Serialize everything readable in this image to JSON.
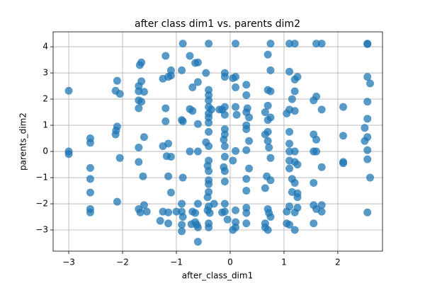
{
  "chart_data": {
    "type": "scatter",
    "title": "after class dim1 vs. parents dim2",
    "x_label": "after_class_dim1",
    "y_label": "parents_dim2",
    "color": "#1f77b4",
    "grid": true,
    "xlim": [
      -3.29,
      2.83
    ],
    "ylim": [
      -3.81,
      4.57
    ],
    "xticks": [
      {
        "value": -3,
        "label": "−3"
      },
      {
        "value": -2,
        "label": "−2"
      },
      {
        "value": -1,
        "label": "−1"
      },
      0,
      1,
      2
    ],
    "yticks": [
      {
        "value": -3,
        "label": "−3"
      },
      {
        "value": -2,
        "label": "−2"
      },
      {
        "value": -1,
        "label": "−1"
      },
      0,
      1,
      2,
      3,
      4
    ],
    "x": [
      -3,
      -3,
      -3,
      -2.6,
      -2.6,
      -2.6,
      -2.6,
      -2.6,
      -2.6,
      -2.6,
      -2.1,
      -2.13,
      -2.05,
      -2.1,
      -2.12,
      -2.13,
      -2.05,
      -2.1,
      -1.65,
      -1.68,
      -1.7,
      -1.65,
      -1.7,
      -1.6,
      -1.7,
      -1.65,
      -1.7,
      -1.6,
      -1.7,
      -1.7,
      -1.62,
      -1.7,
      -1.67,
      -1.6,
      -1.55,
      -1.2,
      -1.1,
      -1.15,
      -1.1,
      -1.25,
      -1.2,
      -1.2,
      -1.15,
      -1.25,
      -1.18,
      -1.1,
      -1.15,
      -1.1,
      -1.25,
      -1.15,
      -1.15,
      -1.3,
      -1.0,
      -0.88,
      -0.9,
      -0.75,
      -0.65,
      -0.6,
      -0.6,
      -0.7,
      -0.7,
      -0.75,
      -0.9,
      -0.88,
      -0.75,
      -0.6,
      -0.6,
      -0.88,
      -0.9,
      -0.9,
      -0.88,
      -0.7,
      -0.65,
      -0.6,
      -0.65,
      -0.62,
      -0.72,
      -0.9,
      -0.9,
      -0.6,
      -0.6,
      -0.4,
      -0.45,
      -0.4,
      -0.4,
      -0.4,
      -0.4,
      -0.4,
      -0.35,
      -0.4,
      -0.4,
      -0.4,
      -0.45,
      -0.4,
      -0.4,
      -0.42,
      -0.4,
      -0.4,
      -0.4,
      -0.4,
      -0.42,
      -0.4,
      -0.42,
      -0.38,
      -0.4,
      -0.4,
      -0.3,
      -0.1,
      -0.15,
      -0.2,
      -0.1,
      -0.1,
      -0.12,
      -0.1,
      -0.1,
      -0.1,
      -0.12,
      -0.1,
      -0.1,
      -0.1,
      -0.15,
      -0.1,
      -0.05,
      -0.1,
      -0.1,
      0.1,
      0.1,
      0.05,
      0.1,
      0.1,
      0.12,
      0.1,
      0.1,
      0.1,
      0.05,
      0.1,
      0.05,
      0.3,
      0.3,
      0.32,
      0.3,
      0.35,
      0.3,
      0.3,
      0.35,
      0.3,
      0.35,
      0.3,
      0.3,
      0.3,
      0.3,
      0.3,
      0.75,
      0.7,
      0.75,
      0.7,
      0.75,
      0.7,
      0.65,
      0.7,
      0.75,
      0.7,
      0.65,
      0.7,
      0.72,
      0.75,
      0.68,
      0.75,
      0.65,
      0.7,
      0.72,
      0.65,
      0.65,
      0.7,
      0.75,
      1.1,
      1.2,
      1.1,
      1.25,
      1.2,
      1.2,
      1.15,
      1.1,
      1.2,
      1.05,
      1.1,
      1.1,
      1.1,
      1.2,
      1.1,
      1.1,
      1.2,
      1.25,
      1.15,
      1.2,
      1.15,
      1.25,
      1.1,
      1.05,
      1.2,
      1.25,
      1.05,
      1.1,
      1.2,
      1.25,
      1.6,
      1.7,
      1.6,
      1.55,
      1.7,
      1.55,
      1.6,
      1.55,
      1.6,
      1.7,
      1.55,
      1.55,
      1.6,
      1.7,
      1.55,
      1.7,
      2.1,
      2.1,
      2.1,
      2.1,
      2.55,
      2.55,
      2.55,
      2.6,
      2.55,
      2.55,
      2.5,
      2.55,
      2.5,
      2.55,
      2.55,
      2.6,
      2.55
    ],
    "values": [
      2.32,
      0,
      -0.1,
      0.5,
      0.33,
      -0.63,
      -1.05,
      -1.57,
      -2.2,
      -2.33,
      2.7,
      2.32,
      2.2,
      0.95,
      0.8,
      0.65,
      -0.25,
      -1.92,
      3.4,
      3.3,
      2.5,
      2.68,
      2.3,
      2.28,
      1.95,
      1.9,
      1.65,
      0.55,
      0.15,
      -0.4,
      -0.95,
      -2.2,
      -2.33,
      -2.05,
      -2.3,
      3.65,
      3.1,
      2.85,
      2.9,
      2.78,
      1.65,
      1.15,
      0.3,
      0.2,
      -0.18,
      -0.2,
      -0.95,
      -1.57,
      -2.3,
      -2.33,
      -2.75,
      -2.65,
      -2.3,
      4.12,
      3.1,
      3.65,
      3.38,
      3.4,
      2.65,
      2.45,
      1.55,
      1.62,
      1.2,
      1.15,
      0,
      0,
      1.05,
      -1.0,
      -2.0,
      -2.3,
      -2.5,
      -2.3,
      -2.35,
      -2.0,
      -2.7,
      -2.8,
      -2.78,
      -2.8,
      -3.05,
      -3.45,
      -2.9,
      4.12,
      3.0,
      2.35,
      2.15,
      1.95,
      1.7,
      1.45,
      1.6,
      1.3,
      1.1,
      0.75,
      0.35,
      0.2,
      -0.35,
      -0.55,
      -0.75,
      -1.1,
      -1.25,
      -1.55,
      -1.75,
      -2.1,
      -2.25,
      -2.35,
      -2.75,
      -2.9,
      -2.0,
      1.7,
      1.6,
      1.6,
      1.4,
      0.85,
      0.45,
      0.65,
      0.2,
      -0.2,
      -0.6,
      -0.75,
      -1.15,
      -2.3,
      -2.33,
      -2.0,
      -2.6,
      3.0,
      2.85,
      4.12,
      2.85,
      2.8,
      2.45,
      1.7,
      1.4,
      0.02,
      -2.25,
      -2.9,
      -3.0,
      -2.7,
      -0.35,
      2.55,
      2.15,
      1.65,
      1.5,
      1.3,
      1.0,
      0.85,
      0.4,
      0.05,
      -0.65,
      -1.05,
      -1.5,
      -2.15,
      -2.35,
      -2.75,
      4.12,
      3.7,
      3.1,
      2.35,
      2.3,
      1.75,
      1.5,
      1.2,
      1.3,
      0.75,
      0.65,
      0.4,
      0.15,
      -0.25,
      -0.95,
      -1.1,
      -1.4,
      -2.2,
      -2.35,
      -2.75,
      -2.9,
      -3.0,
      -2.5,
      4.12,
      4.12,
      3.05,
      2.85,
      2.75,
      2.3,
      2.0,
      1.6,
      1.55,
      1.45,
      0.75,
      0.3,
      0,
      0,
      -0.35,
      -0.65,
      -0.4,
      -0.5,
      -1.05,
      -1.2,
      -1.55,
      -1.75,
      -2.1,
      -2.3,
      -2.33,
      -2.15,
      -2.75,
      -2.8,
      -3.0,
      -1.6,
      4.12,
      4.12,
      2.1,
      1.95,
      1.6,
      0.65,
      0.45,
      0,
      0,
      -0.6,
      -1.2,
      -2.05,
      -2.2,
      -2.3,
      -2.75,
      -2.05,
      1.7,
      0.6,
      -0.4,
      -0.45,
      4.12,
      4.1,
      2.85,
      2.6,
      1.9,
      1.25,
      0.9,
      0.55,
      0.4,
      0.05,
      -0.3,
      -1.0,
      -2.33
    ]
  }
}
